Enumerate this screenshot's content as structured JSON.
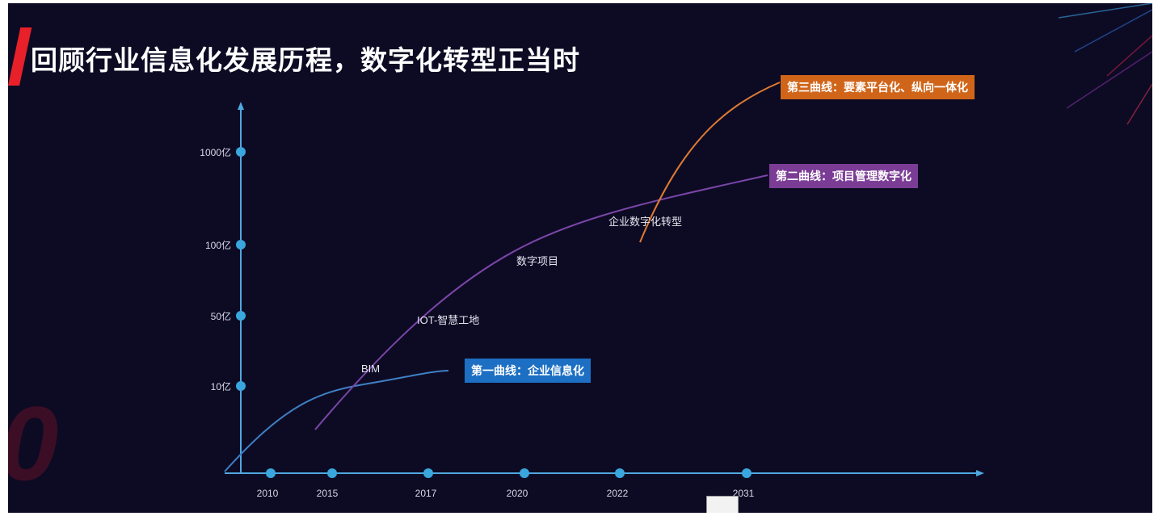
{
  "title": "回顾行业信息化发展历程，数字化转型正当时",
  "y_axis": {
    "ticks": [
      "10亿",
      "50亿",
      "100亿",
      "1000亿"
    ]
  },
  "x_axis": {
    "ticks": [
      "2010",
      "2015",
      "2017",
      "2020",
      "2022",
      "2031"
    ]
  },
  "stages": {
    "bim": "BIM",
    "iot": "IOT-智慧工地",
    "digital_project": "数字项目",
    "enterprise": "企业数字化转型"
  },
  "curves": {
    "curve1": "第一曲线：企业信息化",
    "curve2": "第二曲线：项目管理数字化",
    "curve3": "第三曲线：要素平台化、纵向一体化"
  },
  "colors": {
    "background": "#0d0b24",
    "curve1": "#3f7fc4",
    "curve2": "#7b46a8",
    "curve3": "#e07a32",
    "axis": "#4fa8e0",
    "accent": "#e8202a"
  }
}
